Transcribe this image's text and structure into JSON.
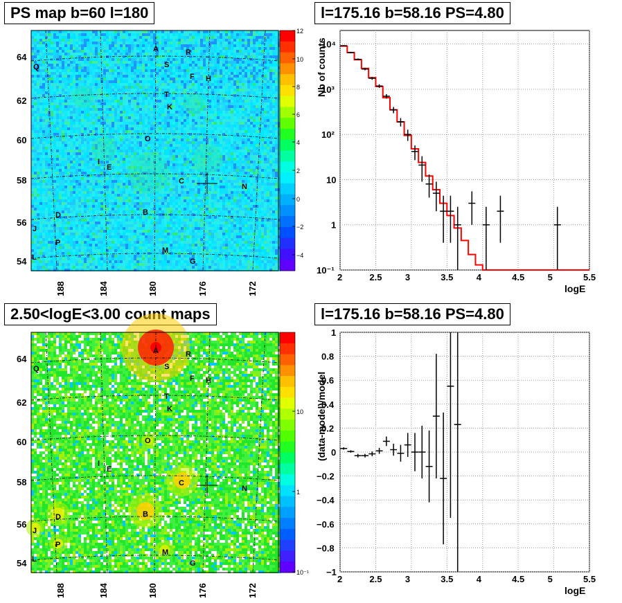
{
  "panels": {
    "ps_map": {
      "title": "PS map b=60 l=180"
    },
    "spectrum": {
      "title": "l=175.16 b=58.16 PS=4.80"
    },
    "count_map": {
      "title": "2.50<logE<3.00 count maps"
    },
    "residual": {
      "title": "l=175.16 b=58.16 PS=4.80"
    }
  },
  "map_axes": {
    "lat_ticks": [
      "64",
      "62",
      "60",
      "58",
      "56",
      "54"
    ],
    "lon_ticks": [
      "188",
      "184",
      "180",
      "176",
      "172"
    ],
    "sources": [
      "A",
      "R",
      "S",
      "Q",
      "F",
      "H",
      "T",
      "K",
      "O",
      "I",
      "E",
      "C",
      "N",
      "D",
      "B",
      "J",
      "P",
      "M",
      "L",
      "G"
    ]
  },
  "colorbars": {
    "ps_map": [
      "12",
      "10",
      "8",
      "6",
      "4",
      "2",
      "0",
      "−2",
      "−4"
    ],
    "count_map": [
      "10",
      "1",
      "10⁻¹"
    ]
  },
  "colors": {
    "model_line": "#ff0000",
    "data": "#000000",
    "grid": "#777777"
  },
  "chart_data": [
    {
      "type": "heatmap",
      "title": "PS map b=60 l=180",
      "xlabel": "",
      "ylabel": "",
      "x_ticks": [
        188,
        184,
        180,
        176,
        172
      ],
      "y_ticks": [
        54,
        56,
        58,
        60,
        62,
        64
      ],
      "z_range": [
        -5,
        12
      ],
      "marker": {
        "l": 175.16,
        "b": 58.16
      }
    },
    {
      "type": "line",
      "title": "l=175.16 b=58.16 PS=4.80",
      "xlabel": "logE",
      "ylabel": "Nb of counts",
      "xlim": [
        2,
        5.5
      ],
      "ylim": [
        0.1,
        20000
      ],
      "y_scale": "log",
      "x_ticks": [
        "2",
        "2.5",
        "3",
        "3.5",
        "4",
        "4.5",
        "5",
        "5.5"
      ],
      "y_ticks": [
        "10⁻¹",
        "1",
        "10",
        "10²",
        "10³",
        "10⁴"
      ],
      "grid": true,
      "series": [
        {
          "kind": "model-step",
          "edges": [
            2.0,
            2.1,
            2.2,
            2.3,
            2.4,
            2.5,
            2.6,
            2.7,
            2.8,
            2.9,
            3.0,
            3.1,
            3.2,
            3.3,
            3.4,
            3.5,
            3.6,
            3.7,
            3.8,
            3.9,
            4.0,
            5.5
          ],
          "values": [
            9000,
            6500,
            4500,
            2900,
            1800,
            1150,
            650,
            350,
            190,
            95,
            48,
            24,
            12,
            6,
            3,
            1.6,
            0.85,
            0.45,
            0.22,
            0.13,
            0.1
          ]
        },
        {
          "kind": "data-points",
          "x": [
            2.05,
            2.15,
            2.25,
            2.35,
            2.45,
            2.55,
            2.65,
            2.75,
            2.85,
            2.95,
            3.05,
            3.15,
            3.25,
            3.35,
            3.45,
            3.55,
            3.65,
            3.85,
            4.05,
            4.25,
            5.05
          ],
          "y": [
            9200,
            6500,
            4600,
            2800,
            1750,
            1180,
            700,
            350,
            190,
            100,
            42,
            21,
            8,
            5,
            2,
            2,
            1,
            3,
            1,
            2,
            1
          ],
          "y_err_low": [
            300,
            250,
            200,
            170,
            130,
            110,
            80,
            55,
            40,
            28,
            15,
            12,
            4,
            3,
            1.6,
            1.6,
            0.95,
            2,
            0.95,
            1.6,
            0.95
          ],
          "y_err_high": [
            300,
            250,
            200,
            170,
            130,
            110,
            80,
            55,
            40,
            28,
            15,
            12,
            5,
            4,
            2.4,
            2.4,
            1.5,
            2.5,
            1.5,
            2.4,
            1.5
          ]
        }
      ]
    },
    {
      "type": "heatmap",
      "title": "2.50<logE<3.00 count maps",
      "xlabel": "",
      "ylabel": "",
      "x_ticks": [
        188,
        184,
        180,
        176,
        172
      ],
      "y_ticks": [
        54,
        56,
        58,
        60,
        62,
        64
      ],
      "z_scale": "log",
      "z_range": [
        0.1,
        30
      ],
      "marker": {
        "l": 175.16,
        "b": 58.16
      }
    },
    {
      "type": "scatter",
      "title": "l=175.16 b=58.16 PS=4.80",
      "xlabel": "logE",
      "ylabel": "(data-model)/model",
      "xlim": [
        2,
        5.5
      ],
      "ylim": [
        -1,
        1
      ],
      "x_ticks": [
        "2",
        "2.5",
        "3",
        "3.5",
        "4",
        "4.5",
        "5",
        "5.5"
      ],
      "y_ticks": [
        "−1",
        "−0.8",
        "−0.6",
        "−0.4",
        "−0.2",
        "0",
        "0.2",
        "0.4",
        "0.6",
        "0.8",
        "1"
      ],
      "grid": true,
      "series": [
        {
          "x": [
            2.05,
            2.15,
            2.25,
            2.35,
            2.45,
            2.55,
            2.65,
            2.75,
            2.85,
            2.95,
            3.05,
            3.15,
            3.25,
            3.35,
            3.45,
            3.55,
            3.65
          ],
          "y": [
            0.03,
            0.005,
            -0.03,
            -0.03,
            -0.015,
            0.01,
            0.09,
            0.02,
            -0.01,
            0.06,
            0.0,
            0.0,
            -0.12,
            0.3,
            -0.22,
            0.55,
            0.23
          ],
          "y_err": [
            0.01,
            0.01,
            0.015,
            0.015,
            0.02,
            0.025,
            0.04,
            0.05,
            0.07,
            0.1,
            0.16,
            0.22,
            0.3,
            0.52,
            0.55,
            1.1,
            1.3
          ]
        }
      ]
    }
  ]
}
